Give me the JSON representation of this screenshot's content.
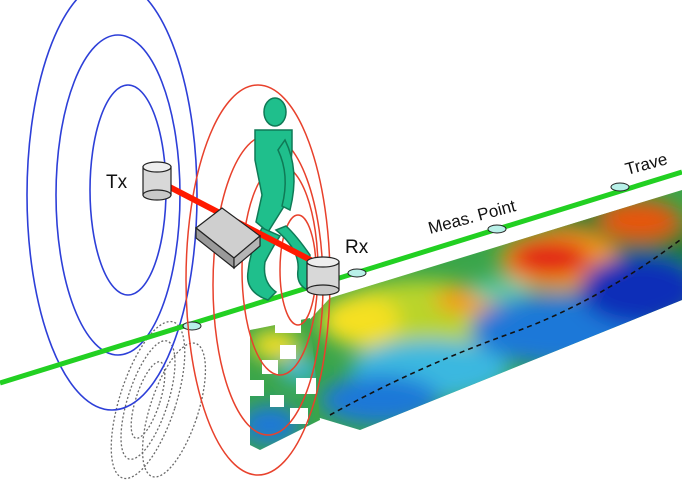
{
  "labels": {
    "transmitter": "Tx",
    "receiver": "Rx",
    "measurement_point": "Meas. Point",
    "traverse": "Trave"
  },
  "colors": {
    "traverse_line": "#22d022",
    "tx_field": "#2d3fd8",
    "rx_field": "#e8412c",
    "boom": "#ff1a00",
    "operator": "#1fbf8c",
    "coil_housing": "#d8d8d8"
  },
  "icons": {
    "operator": "walking-person-icon",
    "instrument": "em-instrument-box-icon",
    "transmitter": "tx-coil-cylinder-icon",
    "receiver": "rx-coil-cylinder-icon"
  }
}
